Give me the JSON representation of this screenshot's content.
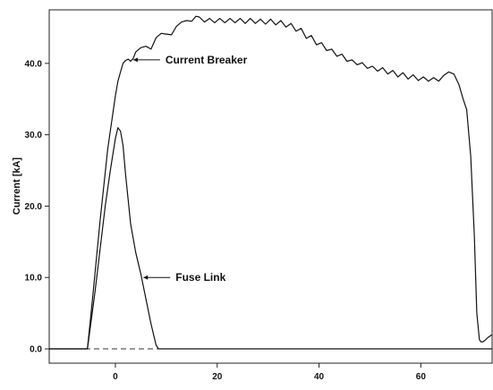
{
  "chart_data": {
    "type": "line",
    "title": "",
    "xlabel": "",
    "ylabel": "Current [kA]",
    "xlim": [
      -13,
      74
    ],
    "ylim": [
      -2,
      47.5
    ],
    "x_ticks": [
      0,
      20,
      40,
      60
    ],
    "x_tick_labels": [
      "0",
      "20",
      "40",
      "60"
    ],
    "y_ticks": [
      0,
      10,
      20,
      30,
      40
    ],
    "y_tick_labels": [
      "0.0",
      "10.0",
      "20.0",
      "30.0",
      "40.0"
    ],
    "grid": false,
    "legend": "none",
    "baseline": {
      "y": 0,
      "style": "dashed"
    },
    "series": [
      {
        "x": [
          -13,
          -5.5,
          -4.5,
          -3,
          -1.5,
          0,
          0.5,
          1,
          1.5,
          2,
          2.5,
          3,
          3.5,
          4,
          5,
          6,
          7,
          8,
          9,
          10,
          11,
          12,
          13,
          14,
          15,
          15.8,
          16.5,
          17.5,
          18.5,
          19.5,
          20.5,
          21.5,
          22.5,
          23.5,
          24.5,
          25.5,
          26.5,
          27.5,
          28.5,
          29.5,
          30.5,
          31.5,
          32.5,
          33.5,
          34.5,
          35.5,
          36.5,
          37.5,
          38.5,
          39.5,
          40.5,
          41.5,
          42.5,
          43.5,
          44.5,
          45.5,
          46.5,
          47.5,
          48.5,
          49.5,
          50.5,
          51.5,
          52.5,
          53.5,
          54.5,
          55.5,
          56.5,
          57.5,
          58.5,
          59.5,
          60.5,
          61.5,
          62.5,
          63.5,
          64.5,
          65.5,
          66.5,
          67.5,
          68.3,
          69,
          69.8,
          70.5,
          71,
          71.5,
          71.8,
          72.2,
          72.6,
          73.2,
          74
        ],
        "y": [
          0,
          0,
          7,
          18,
          28,
          35.5,
          37.5,
          38.8,
          40,
          40.4,
          40.6,
          40.3,
          40.7,
          41.6,
          42.2,
          42.4,
          42.0,
          43.6,
          44.2,
          44.1,
          44.0,
          45.2,
          45.8,
          46.0,
          45.9,
          46.6,
          46.5,
          45.8,
          46.3,
          45.7,
          46.3,
          45.7,
          46.3,
          45.7,
          46.3,
          45.6,
          46.3,
          45.6,
          46.2,
          45.5,
          46.2,
          45.4,
          46.0,
          45.1,
          45.6,
          44.5,
          44.9,
          43.5,
          43.9,
          42.6,
          42.9,
          41.8,
          42.0,
          41.0,
          41.3,
          40.3,
          40.5,
          39.8,
          40.1,
          39.3,
          39.6,
          38.9,
          39.4,
          38.5,
          39.0,
          38.1,
          38.7,
          37.8,
          38.4,
          37.6,
          38.1,
          37.5,
          38.0,
          37.5,
          38.3,
          38.8,
          38.5,
          37.0,
          35.0,
          33.5,
          27.0,
          16.0,
          5.0,
          1.3,
          1.0,
          1.0,
          1.2,
          1.6,
          2.0
        ]
      },
      {
        "x": [
          -13,
          -5.5,
          -4,
          -3,
          -2,
          -1,
          0,
          0.5,
          1,
          1.5,
          2,
          3,
          4,
          5,
          6,
          7,
          8,
          8.5,
          9,
          74
        ],
        "y": [
          0,
          0,
          8,
          14,
          20,
          25,
          29.5,
          31.0,
          30.5,
          28.5,
          24.5,
          17.5,
          13.5,
          10.5,
          7.0,
          3.5,
          0.5,
          0,
          0,
          0
        ]
      }
    ],
    "annotations": [
      {
        "text": "Current Breaker",
        "x": 3.5,
        "y": 40.5
      },
      {
        "text": "Fuse Link",
        "x": 5.5,
        "y": 10.0
      }
    ]
  }
}
